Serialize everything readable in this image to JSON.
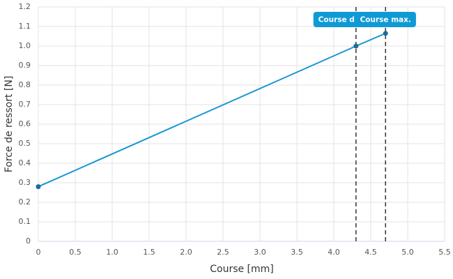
{
  "chart_data": {
    "type": "line",
    "x_label": "Course [mm]",
    "y_label": "Force de ressort [N]",
    "x": [
      0,
      4.3,
      4.7
    ],
    "values": [
      0.28,
      1.0,
      1.065
    ],
    "color": "#1a96d4",
    "marker_color": "#1b6c99",
    "xlim": [
      0,
      5.5
    ],
    "xticks": [
      0,
      0.5,
      {
        "value": 1,
        "label": "1.0"
      },
      1.5,
      {
        "value": 2,
        "label": "2.0"
      },
      2.5,
      {
        "value": 3,
        "label": "3.0"
      },
      3.5,
      {
        "value": 4,
        "label": "4.0"
      },
      4.5,
      {
        "value": 5,
        "label": "5.0"
      },
      5.5
    ],
    "ylim": [
      0,
      1.2
    ],
    "yticks": [
      0,
      0.1,
      0.2,
      0.3,
      0.4,
      0.5,
      0.6,
      0.7,
      0.8,
      0.9,
      {
        "value": 1,
        "label": "1.0"
      },
      1.1,
      1.2
    ],
    "grid": true,
    "annotations": [
      {
        "x": 4.3,
        "label": "Course d"
      },
      {
        "x": 4.7,
        "label": "Course max."
      }
    ],
    "annotation_color": "#0f9ad6"
  }
}
